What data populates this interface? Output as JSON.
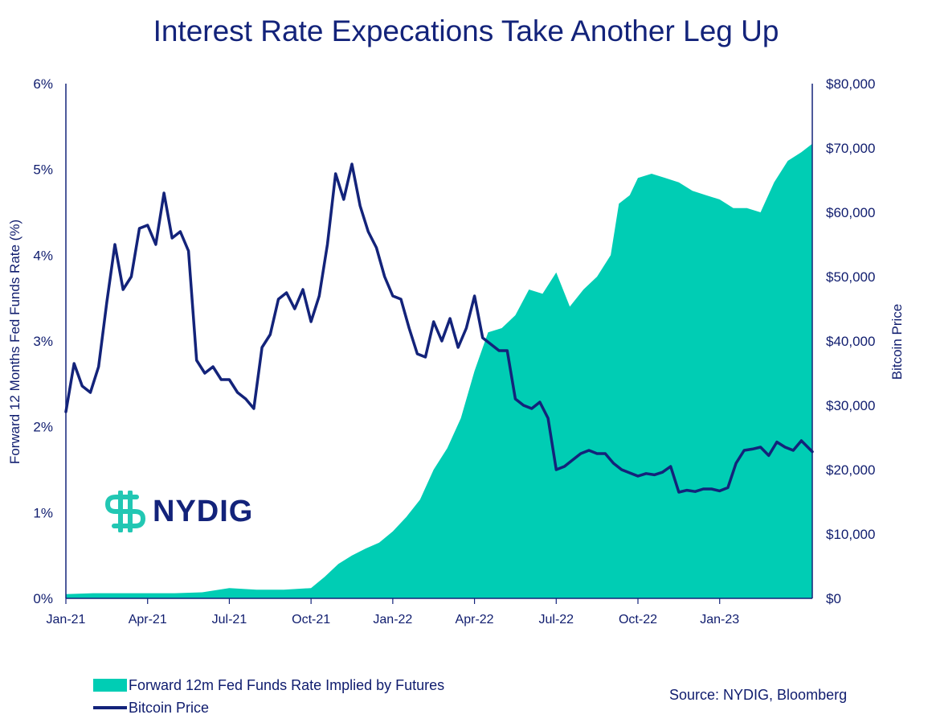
{
  "chart_data": {
    "type": "area+line",
    "title": "Interest Rate Expecations Take Another Leg Up",
    "left_axis": {
      "label": "Forward 12 Months Fed Funds Rate (%)",
      "ylim": [
        0,
        6
      ],
      "ticks": [
        "0%",
        "1%",
        "2%",
        "3%",
        "4%",
        "5%",
        "6%"
      ]
    },
    "right_axis": {
      "label": "Bitcoin Price",
      "ylim": [
        0,
        80000
      ],
      "ticks": [
        "$0",
        "$10,000",
        "$20,000",
        "$30,000",
        "$40,000",
        "$50,000",
        "$60,000",
        "$70,000",
        "$80,000"
      ]
    },
    "x_axis": {
      "range_months": [
        0,
        27.4
      ],
      "ticks": [
        {
          "label": "Jan-21",
          "month": 0
        },
        {
          "label": "Apr-21",
          "month": 3
        },
        {
          "label": "Jul-21",
          "month": 6
        },
        {
          "label": "Oct-21",
          "month": 9
        },
        {
          "label": "Jan-22",
          "month": 12
        },
        {
          "label": "Apr-22",
          "month": 15
        },
        {
          "label": "Jul-22",
          "month": 18
        },
        {
          "label": "Oct-22",
          "month": 21
        },
        {
          "label": "Jan-23",
          "month": 24
        }
      ]
    },
    "series": [
      {
        "name": "Forward 12m Fed Funds Rate Implied by Futures",
        "type": "area",
        "axis": "left",
        "color": "#00cdb4",
        "points": [
          [
            0,
            0.05
          ],
          [
            1,
            0.06
          ],
          [
            2,
            0.06
          ],
          [
            3,
            0.06
          ],
          [
            4,
            0.06
          ],
          [
            5,
            0.07
          ],
          [
            6,
            0.12
          ],
          [
            7,
            0.1
          ],
          [
            8,
            0.1
          ],
          [
            9,
            0.12
          ],
          [
            9.5,
            0.25
          ],
          [
            10,
            0.4
          ],
          [
            10.5,
            0.5
          ],
          [
            11,
            0.58
          ],
          [
            11.5,
            0.65
          ],
          [
            12,
            0.78
          ],
          [
            12.5,
            0.95
          ],
          [
            13,
            1.15
          ],
          [
            13.5,
            1.5
          ],
          [
            14,
            1.75
          ],
          [
            14.5,
            2.1
          ],
          [
            15,
            2.65
          ],
          [
            15.5,
            3.1
          ],
          [
            16,
            3.15
          ],
          [
            16.5,
            3.3
          ],
          [
            17,
            3.6
          ],
          [
            17.5,
            3.55
          ],
          [
            18,
            3.8
          ],
          [
            18.5,
            3.4
          ],
          [
            19,
            3.6
          ],
          [
            19.5,
            3.75
          ],
          [
            20,
            4.0
          ],
          [
            20.3,
            4.6
          ],
          [
            20.7,
            4.7
          ],
          [
            21,
            4.9
          ],
          [
            21.5,
            4.95
          ],
          [
            22,
            4.9
          ],
          [
            22.5,
            4.85
          ],
          [
            23,
            4.75
          ],
          [
            23.5,
            4.7
          ],
          [
            24,
            4.65
          ],
          [
            24.5,
            4.55
          ],
          [
            25,
            4.55
          ],
          [
            25.5,
            4.5
          ],
          [
            26,
            4.85
          ],
          [
            26.5,
            5.1
          ],
          [
            27,
            5.2
          ],
          [
            27.4,
            5.3
          ]
        ]
      },
      {
        "name": "Bitcoin Price",
        "type": "line",
        "axis": "right",
        "color": "#13237a",
        "points": [
          [
            0,
            29000
          ],
          [
            0.3,
            36500
          ],
          [
            0.6,
            33000
          ],
          [
            0.9,
            32000
          ],
          [
            1.2,
            36000
          ],
          [
            1.5,
            46000
          ],
          [
            1.8,
            55000
          ],
          [
            2.1,
            48000
          ],
          [
            2.4,
            50000
          ],
          [
            2.7,
            57500
          ],
          [
            3.0,
            58000
          ],
          [
            3.3,
            55000
          ],
          [
            3.6,
            63000
          ],
          [
            3.9,
            56000
          ],
          [
            4.2,
            57000
          ],
          [
            4.5,
            54000
          ],
          [
            4.8,
            37000
          ],
          [
            5.1,
            35000
          ],
          [
            5.4,
            36000
          ],
          [
            5.7,
            34000
          ],
          [
            6.0,
            34000
          ],
          [
            6.3,
            32000
          ],
          [
            6.6,
            31000
          ],
          [
            6.9,
            29500
          ],
          [
            7.2,
            39000
          ],
          [
            7.5,
            41000
          ],
          [
            7.8,
            46500
          ],
          [
            8.1,
            47500
          ],
          [
            8.4,
            45000
          ],
          [
            8.7,
            48000
          ],
          [
            9.0,
            43000
          ],
          [
            9.3,
            47000
          ],
          [
            9.6,
            55000
          ],
          [
            9.9,
            66000
          ],
          [
            10.2,
            62000
          ],
          [
            10.5,
            67500
          ],
          [
            10.8,
            61000
          ],
          [
            11.1,
            57000
          ],
          [
            11.4,
            54500
          ],
          [
            11.7,
            50000
          ],
          [
            12.0,
            47000
          ],
          [
            12.3,
            46500
          ],
          [
            12.6,
            42000
          ],
          [
            12.9,
            38000
          ],
          [
            13.2,
            37500
          ],
          [
            13.5,
            43000
          ],
          [
            13.8,
            40000
          ],
          [
            14.1,
            43500
          ],
          [
            14.4,
            39000
          ],
          [
            14.7,
            42000
          ],
          [
            15.0,
            47000
          ],
          [
            15.3,
            40500
          ],
          [
            15.6,
            39500
          ],
          [
            15.9,
            38500
          ],
          [
            16.2,
            38500
          ],
          [
            16.5,
            31000
          ],
          [
            16.8,
            30000
          ],
          [
            17.1,
            29500
          ],
          [
            17.4,
            30500
          ],
          [
            17.7,
            28000
          ],
          [
            18.0,
            20000
          ],
          [
            18.3,
            20500
          ],
          [
            18.6,
            21500
          ],
          [
            18.9,
            22500
          ],
          [
            19.2,
            23000
          ],
          [
            19.5,
            22500
          ],
          [
            19.8,
            22500
          ],
          [
            20.1,
            21000
          ],
          [
            20.4,
            20000
          ],
          [
            20.7,
            19500
          ],
          [
            21.0,
            19000
          ],
          [
            21.3,
            19400
          ],
          [
            21.6,
            19200
          ],
          [
            21.9,
            19600
          ],
          [
            22.2,
            20500
          ],
          [
            22.5,
            16500
          ],
          [
            22.8,
            16800
          ],
          [
            23.1,
            16600
          ],
          [
            23.4,
            17000
          ],
          [
            23.7,
            17000
          ],
          [
            24.0,
            16700
          ],
          [
            24.3,
            17200
          ],
          [
            24.6,
            21000
          ],
          [
            24.9,
            23000
          ],
          [
            25.2,
            23200
          ],
          [
            25.5,
            23500
          ],
          [
            25.8,
            22200
          ],
          [
            26.1,
            24300
          ],
          [
            26.4,
            23500
          ],
          [
            26.7,
            23000
          ],
          [
            27.0,
            24500
          ],
          [
            27.4,
            22800
          ]
        ]
      }
    ],
    "legend": [
      {
        "label": "Forward 12m Fed Funds Rate Implied by Futures",
        "kind": "area",
        "color": "#00cdb4"
      },
      {
        "label": "Bitcoin Price",
        "kind": "line",
        "color": "#13237a"
      }
    ]
  },
  "logo": {
    "text": "NYDIG",
    "icon": "nydig-logo-icon",
    "accent": "#22c7b3",
    "dark": "#13237a"
  },
  "source": "Source: NYDIG, Bloomberg"
}
